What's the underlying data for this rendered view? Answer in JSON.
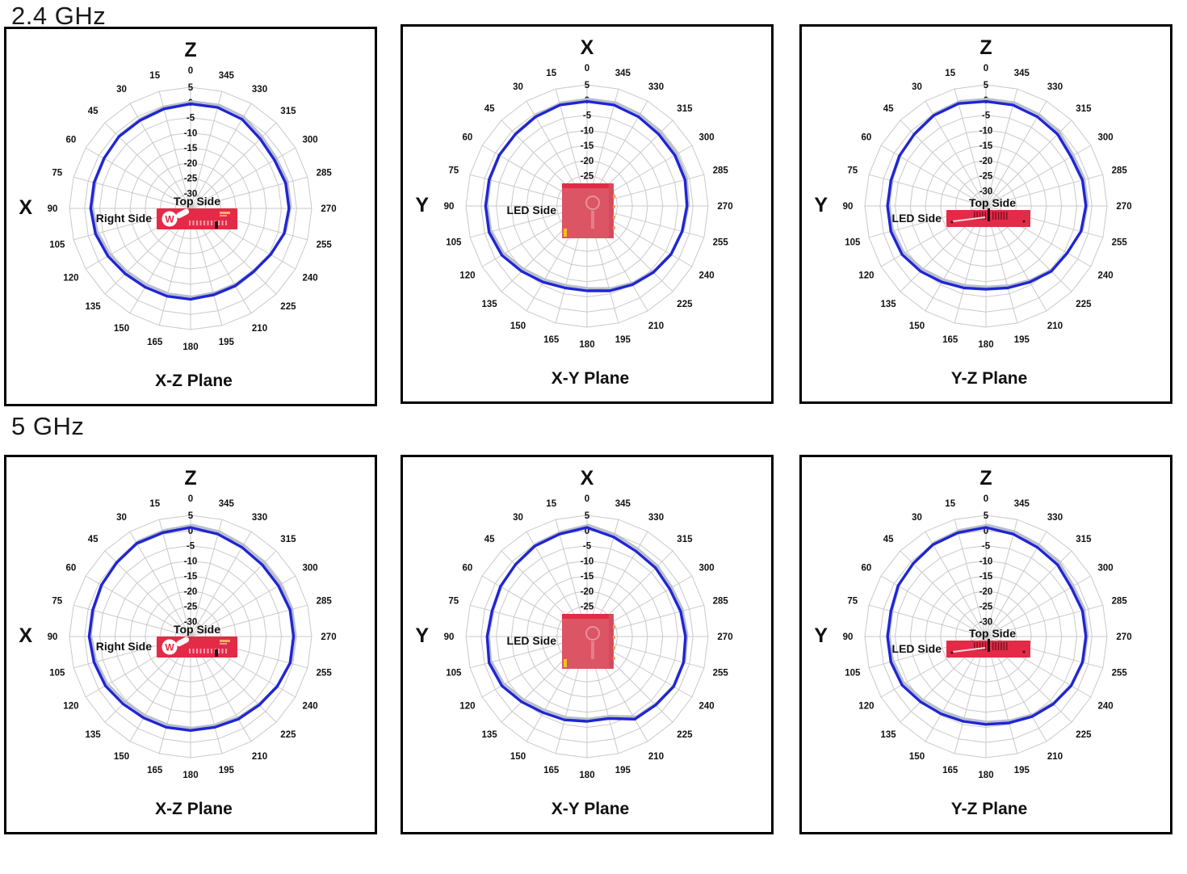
{
  "sections": [
    {
      "heading": "2.4 GHz"
    },
    {
      "heading": "5 GHz"
    }
  ],
  "colors": {
    "curve_blue": "#2026d2",
    "curve_shadow": "#b9bec9",
    "grid_gray": "#c9c9c9",
    "board_red": "#e32b47",
    "board_pink": "#dc5565",
    "label_black": "#111111",
    "accent_yellow": "#f0c419"
  },
  "chart_data": [
    {
      "type": "line",
      "subtype": "polar-radar",
      "freq": "2.4 GHz",
      "title": "X-Z Plane",
      "top_axis": "Z",
      "left_axis": "X",
      "angle_step": 15,
      "angle_labels": [
        "0",
        "15",
        "30",
        "45",
        "60",
        "75",
        "90",
        "105",
        "120",
        "135",
        "150",
        "165",
        "180",
        "195",
        "210",
        "225",
        "240",
        "255",
        "270",
        "285",
        "300",
        "315",
        "330",
        "345"
      ],
      "radial_ticks": [
        5,
        0,
        -5,
        -10,
        -15,
        -20,
        -25,
        -30
      ],
      "rmax": 5,
      "rmin": -35,
      "grid": true,
      "legend": "none",
      "values": [
        -0.5,
        -1,
        -1.5,
        -1.5,
        -2,
        -2,
        -2,
        -2.5,
        -3.5,
        -4.5,
        -5,
        -5,
        -5,
        -5.5,
        -5.5,
        -5.5,
        -4.5,
        -3,
        -2.5,
        -2.5,
        -3,
        -2.5,
        -1,
        -0.5
      ],
      "board": "router-front",
      "board_labels": {
        "top": "Top Side",
        "left": "Right Side"
      }
    },
    {
      "type": "line",
      "subtype": "polar-radar",
      "freq": "2.4 GHz",
      "title": "X-Y Plane",
      "top_axis": "X",
      "left_axis": "Y",
      "angle_step": 15,
      "angle_labels": [
        "0",
        "15",
        "30",
        "45",
        "60",
        "75",
        "90",
        "105",
        "120",
        "135",
        "150",
        "165",
        "180",
        "195",
        "210",
        "225",
        "240",
        "255",
        "270",
        "285",
        "300",
        "315",
        "330",
        "345"
      ],
      "radial_ticks": [
        5,
        0,
        -5,
        -10,
        -15,
        -20,
        -25
      ],
      "rmax": 5,
      "rmin": -35,
      "grid": true,
      "legend": "none",
      "values": [
        -0.5,
        -0.5,
        -1,
        -1.5,
        -1.5,
        -1.5,
        -1.5,
        -1.5,
        -2.5,
        -4.5,
        -6,
        -7,
        -7,
        -6,
        -5,
        -4,
        -3,
        -2.5,
        -2,
        -1.5,
        -1.5,
        -1.5,
        -1,
        -0.5
      ],
      "board": "board-top",
      "board_labels": {
        "left": "LED Side"
      }
    },
    {
      "type": "line",
      "subtype": "polar-radar",
      "freq": "2.4 GHz",
      "title": "Y-Z Plane",
      "top_axis": "Z",
      "left_axis": "Y",
      "angle_step": 15,
      "angle_labels": [
        "0",
        "15",
        "30",
        "45",
        "60",
        "75",
        "90",
        "105",
        "120",
        "135",
        "150",
        "165",
        "180",
        "195",
        "210",
        "225",
        "240",
        "255",
        "270",
        "285",
        "300",
        "315",
        "330",
        "345"
      ],
      "radial_ticks": [
        5,
        0,
        -5,
        -10,
        -15,
        -20,
        -25,
        -30
      ],
      "rmax": 5,
      "rmin": -35,
      "grid": true,
      "legend": "none",
      "values": [
        -0.5,
        0,
        -0.5,
        -1.5,
        -2,
        -2.5,
        -2.5,
        -2.5,
        -3,
        -4.5,
        -6,
        -7,
        -7.5,
        -7,
        -6,
        -4.5,
        -4,
        -2.5,
        -2,
        -2,
        -2.5,
        -1.5,
        -1,
        -0.5
      ],
      "board": "router-side",
      "board_labels": {
        "top": "Top Side",
        "left": "LED Side"
      }
    },
    {
      "type": "line",
      "subtype": "polar-radar",
      "freq": "5 GHz",
      "title": "X-Z Plane",
      "top_axis": "Z",
      "left_axis": "X",
      "angle_step": 15,
      "angle_labels": [
        "0",
        "15",
        "30",
        "45",
        "60",
        "75",
        "90",
        "105",
        "120",
        "135",
        "150",
        "165",
        "180",
        "195",
        "210",
        "225",
        "240",
        "255",
        "270",
        "285",
        "300",
        "315",
        "330",
        "345"
      ],
      "radial_ticks": [
        5,
        0,
        -5,
        -10,
        -15,
        -20,
        -25,
        -30
      ],
      "rmax": 5,
      "rmin": -35,
      "grid": true,
      "legend": "none",
      "values": [
        1,
        0.5,
        0.5,
        -0.5,
        -1,
        -1.5,
        -1.5,
        -2,
        -2.5,
        -3.5,
        -4,
        -4,
        -4,
        -4,
        -3.5,
        -3,
        -2,
        -1,
        -1,
        -1,
        -1.5,
        -1.5,
        -1,
        0
      ],
      "board": "router-front",
      "board_labels": {
        "top": "Top Side",
        "left": "Right Side"
      }
    },
    {
      "type": "line",
      "subtype": "polar-radar",
      "freq": "5 GHz",
      "title": "X-Y Plane",
      "top_axis": "X",
      "left_axis": "Y",
      "angle_step": 15,
      "angle_labels": [
        "0",
        "15",
        "30",
        "45",
        "60",
        "75",
        "90",
        "105",
        "120",
        "135",
        "150",
        "165",
        "180",
        "195",
        "210",
        "225",
        "240",
        "255",
        "270",
        "285",
        "300",
        "315",
        "330",
        "345"
      ],
      "radial_ticks": [
        5,
        0,
        -5,
        -10,
        -15,
        -20,
        -25
      ],
      "rmax": 5,
      "rmin": -35,
      "grid": true,
      "legend": "none",
      "values": [
        1,
        0,
        -0.5,
        -1.5,
        -2,
        -2.5,
        -2,
        -1.5,
        -2.5,
        -4.5,
        -6,
        -6.5,
        -7,
        -7,
        -3.5,
        -3,
        -2,
        -2,
        -2.5,
        -3,
        -3.5,
        -3,
        -2.5,
        -1
      ],
      "board": "board-top",
      "board_labels": {
        "left": "LED Side"
      }
    },
    {
      "type": "line",
      "subtype": "polar-radar",
      "freq": "5 GHz",
      "title": "Y-Z Plane",
      "top_axis": "Z",
      "left_axis": "Y",
      "angle_step": 15,
      "angle_labels": [
        "0",
        "15",
        "30",
        "45",
        "60",
        "75",
        "90",
        "105",
        "120",
        "135",
        "150",
        "165",
        "180",
        "195",
        "210",
        "225",
        "240",
        "255",
        "270",
        "285",
        "300",
        "315",
        "330",
        "345"
      ],
      "radial_ticks": [
        5,
        0,
        -5,
        -10,
        -15,
        -20,
        -25,
        -30
      ],
      "rmax": 5,
      "rmin": -35,
      "grid": true,
      "legend": "none",
      "values": [
        1,
        0.5,
        0,
        -1,
        -1.5,
        -2.5,
        -2.5,
        -2.5,
        -3,
        -4.5,
        -5.5,
        -6,
        -6,
        -5.5,
        -4.5,
        -3.5,
        -2.5,
        -2,
        -2,
        -2,
        -2.5,
        -1.5,
        -1,
        0
      ],
      "board": "router-side",
      "board_labels": {
        "top": "Top Side",
        "left": "LED Side"
      }
    }
  ]
}
